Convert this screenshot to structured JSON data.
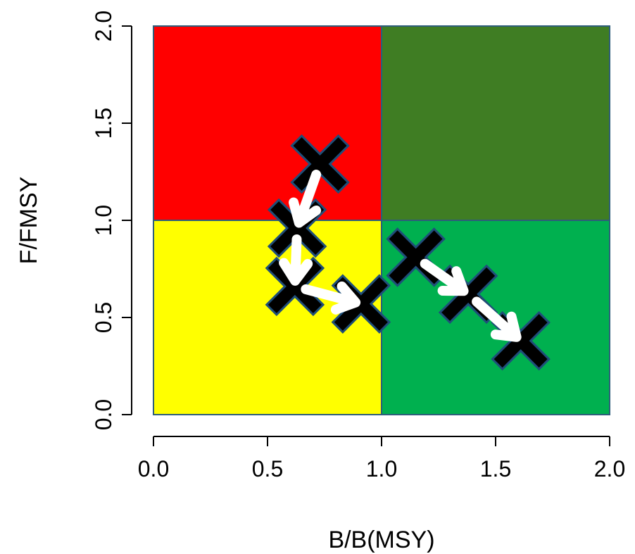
{
  "chart_data": {
    "type": "scatter",
    "xlabel": "B/B(MSY)",
    "ylabel": "F/FMSY",
    "xlim": [
      0,
      2
    ],
    "ylim": [
      0,
      2
    ],
    "x_ticks": [
      "0.0",
      "0.5",
      "1.0",
      "1.5",
      "2.0"
    ],
    "y_ticks": [
      "0.0",
      "0.5",
      "1.0",
      "1.5",
      "2.0"
    ],
    "grid": false,
    "quadrants": [
      {
        "x": [
          0,
          1
        ],
        "y": [
          1,
          2
        ],
        "color": "#ff0000"
      },
      {
        "x": [
          1,
          2
        ],
        "y": [
          1,
          2
        ],
        "color": "#3f7d23"
      },
      {
        "x": [
          0,
          1
        ],
        "y": [
          0,
          1
        ],
        "color": "#ffff00"
      },
      {
        "x": [
          1,
          2
        ],
        "y": [
          0,
          1
        ],
        "color": "#00b04f"
      }
    ],
    "trajectories": [
      {
        "points": [
          {
            "x": 0.73,
            "y": 1.29
          },
          {
            "x": 0.63,
            "y": 0.96
          },
          {
            "x": 0.62,
            "y": 0.66
          },
          {
            "x": 0.91,
            "y": 0.57
          }
        ]
      },
      {
        "points": [
          {
            "x": 1.15,
            "y": 0.81
          },
          {
            "x": 1.38,
            "y": 0.62
          },
          {
            "x": 1.61,
            "y": 0.38
          }
        ]
      }
    ],
    "marker_color": "#000000",
    "marker_edge_color": "#1f4e79",
    "arrow_color": "#ffffff"
  }
}
